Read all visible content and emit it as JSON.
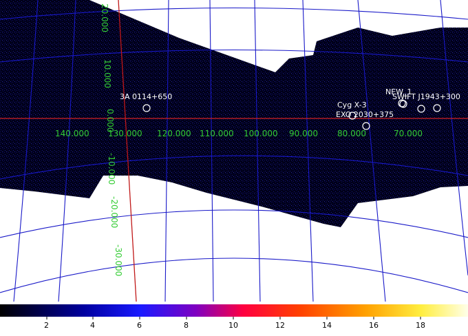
{
  "colors": {
    "grid": "#1818c8",
    "axis_h": "#d02020",
    "axis_v": "#c01818",
    "label": "#33cc33",
    "source": "#ffffff",
    "field": "#000018"
  },
  "axis_labels": {
    "longitude": [
      "140.000",
      "130.000",
      "120.000",
      "110.000",
      "100.000",
      "90.000",
      "80.000",
      "70.000"
    ],
    "latitude": [
      "20.000",
      "10.000",
      "0.000",
      "-10.000",
      "-20.000",
      "-30.000"
    ]
  },
  "sources": [
    "3A 0114+650",
    "Cyg X-3",
    "EXO 2030+375",
    "NEW_1",
    "SWIFT J1943+300"
  ],
  "colorbar": {
    "ticks": [
      "2",
      "4",
      "6",
      "8",
      "10",
      "12",
      "14",
      "16",
      "18"
    ]
  }
}
